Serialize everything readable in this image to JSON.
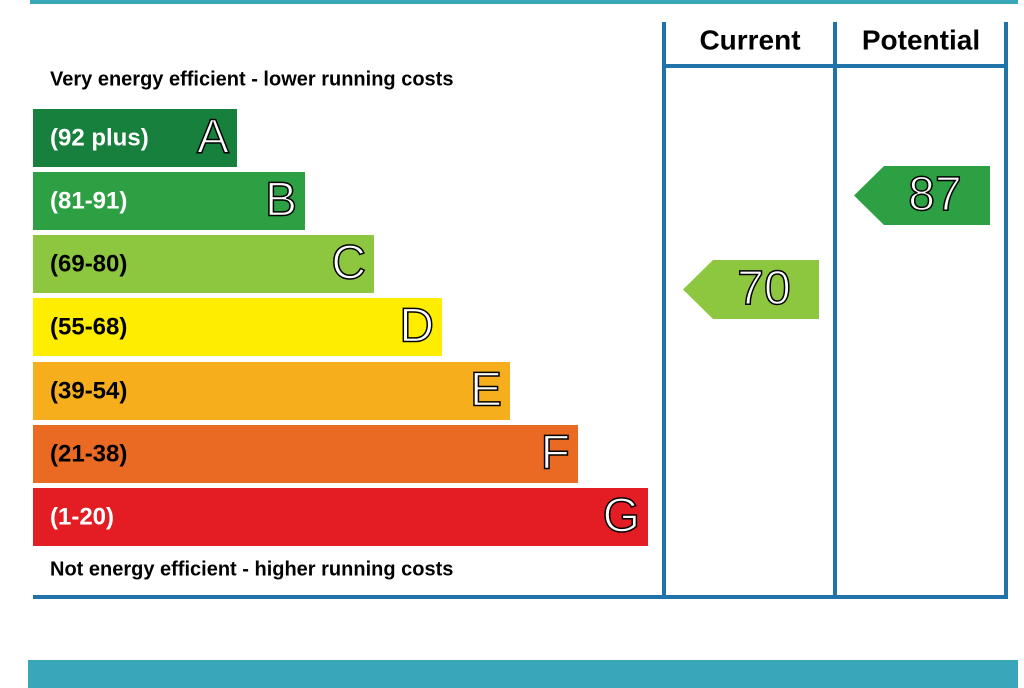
{
  "header": {
    "current": "Current",
    "potential": "Potential"
  },
  "top_note": "Very energy efficient - lower running costs",
  "bottom_note": "Not energy efficient - higher running costs",
  "bands": [
    {
      "range": "(92 plus)",
      "letter": "A",
      "color": "#17803d"
    },
    {
      "range": "(81-91)",
      "letter": "B",
      "color": "#2ca043"
    },
    {
      "range": "(69-80)",
      "letter": "C",
      "color": "#8dc63f"
    },
    {
      "range": "(55-68)",
      "letter": "D",
      "color": "#ffed00"
    },
    {
      "range": "(39-54)",
      "letter": "E",
      "color": "#f7ae1d"
    },
    {
      "range": "(21-38)",
      "letter": "F",
      "color": "#eb6a23"
    },
    {
      "range": "(1-20)",
      "letter": "G",
      "color": "#e31d23"
    }
  ],
  "current": {
    "value": 70
  },
  "potential": {
    "value": 87
  }
}
